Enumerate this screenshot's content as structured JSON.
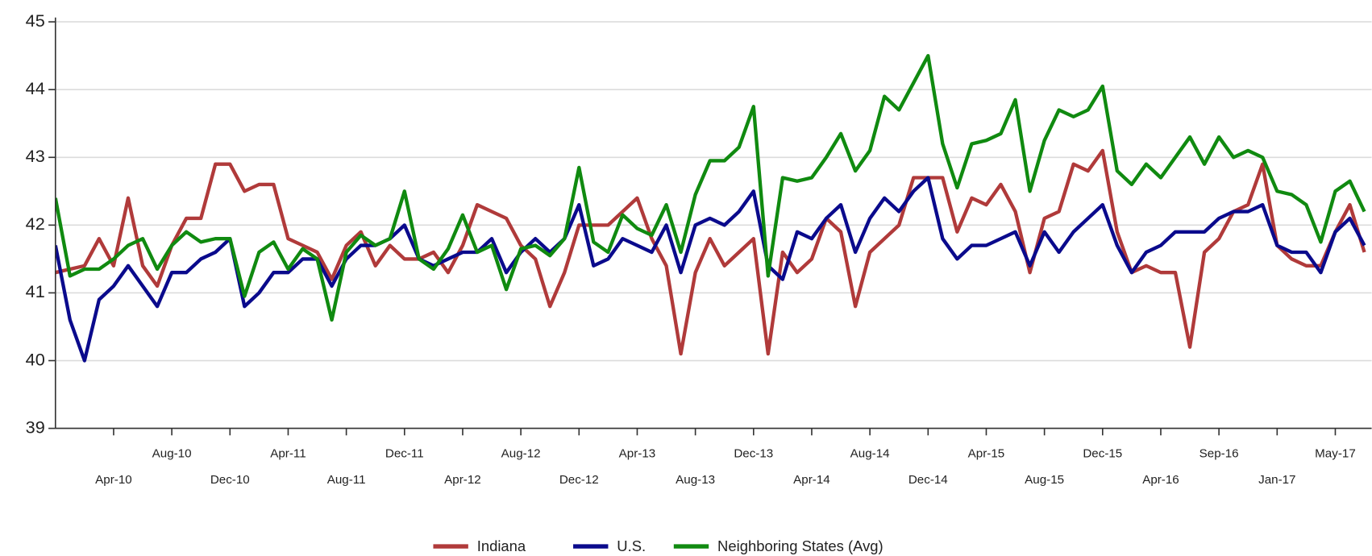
{
  "chart_data": {
    "type": "line",
    "categories": [
      null,
      null,
      null,
      null,
      "Apr-10",
      null,
      null,
      null,
      "Aug-10",
      null,
      null,
      null,
      "Dec-10",
      null,
      null,
      null,
      "Apr-11",
      null,
      null,
      null,
      "Aug-11",
      null,
      null,
      null,
      "Dec-11",
      null,
      null,
      null,
      "Apr-12",
      null,
      null,
      null,
      "Aug-12",
      null,
      null,
      null,
      "Dec-12",
      null,
      null,
      null,
      "Apr-13",
      null,
      null,
      null,
      "Aug-13",
      null,
      null,
      null,
      "Dec-13",
      null,
      null,
      null,
      "Apr-14",
      null,
      null,
      null,
      "Aug-14",
      null,
      null,
      null,
      "Dec-14",
      null,
      null,
      null,
      "Apr-15",
      null,
      null,
      null,
      "Aug-15",
      null,
      null,
      null,
      "Dec-15",
      null,
      null,
      null,
      "Apr-16",
      null,
      null,
      null,
      "Sep-16",
      null,
      null,
      null,
      "Jan-17",
      null,
      null,
      null,
      "May-17",
      null,
      null
    ],
    "series": [
      {
        "name": "Indiana",
        "color": "#b03a3a",
        "values": [
          41.3,
          41.35,
          41.4,
          41.8,
          41.4,
          42.4,
          41.4,
          41.1,
          41.7,
          42.1,
          42.1,
          42.9,
          42.9,
          42.5,
          42.6,
          42.6,
          41.8,
          41.7,
          41.6,
          41.2,
          41.7,
          41.9,
          41.4,
          41.7,
          41.5,
          41.5,
          41.6,
          41.3,
          41.7,
          42.3,
          42.2,
          42.1,
          41.7,
          41.5,
          40.8,
          41.3,
          42.0,
          42.0,
          42.0,
          42.2,
          42.4,
          41.8,
          41.4,
          40.1,
          41.3,
          41.8,
          41.4,
          41.6,
          41.8,
          40.1,
          41.6,
          41.3,
          41.5,
          42.1,
          41.9,
          40.8,
          41.6,
          41.8,
          42.0,
          42.7,
          42.7,
          42.7,
          41.9,
          42.4,
          42.3,
          42.6,
          42.2,
          41.3,
          42.1,
          42.2,
          42.9,
          42.8,
          43.1,
          41.9,
          41.3,
          41.4,
          41.3,
          41.3,
          40.2,
          41.6,
          41.8,
          42.2,
          42.3,
          42.9,
          41.7,
          41.5,
          41.4,
          41.4,
          41.9,
          42.3,
          41.6
        ]
      },
      {
        "name": "U.S.",
        "color": "#0a0a8c",
        "values": [
          41.7,
          40.6,
          40.0,
          40.9,
          41.1,
          41.4,
          41.1,
          40.8,
          41.3,
          41.3,
          41.5,
          41.6,
          41.8,
          40.8,
          41.0,
          41.3,
          41.3,
          41.5,
          41.5,
          41.1,
          41.5,
          41.7,
          41.7,
          41.8,
          42.0,
          41.5,
          41.4,
          41.5,
          41.6,
          41.6,
          41.8,
          41.3,
          41.6,
          41.8,
          41.6,
          41.8,
          42.3,
          41.4,
          41.5,
          41.8,
          41.7,
          41.6,
          42.0,
          41.3,
          42.0,
          42.1,
          42.0,
          42.2,
          42.5,
          41.4,
          41.2,
          41.9,
          41.8,
          42.1,
          42.3,
          41.6,
          42.1,
          42.4,
          42.2,
          42.5,
          42.7,
          41.8,
          41.5,
          41.7,
          41.7,
          41.8,
          41.9,
          41.4,
          41.9,
          41.6,
          41.9,
          42.1,
          42.3,
          41.7,
          41.3,
          41.6,
          41.7,
          41.9,
          41.9,
          41.9,
          42.1,
          42.2,
          42.2,
          42.3,
          41.7,
          41.6,
          41.6,
          41.3,
          41.9,
          42.1,
          41.7
        ]
      },
      {
        "name": "Neighboring States (Avg)",
        "color": "#108a10",
        "values": [
          42.4,
          41.25,
          41.35,
          41.35,
          41.5,
          41.7,
          41.8,
          41.35,
          41.7,
          41.9,
          41.75,
          41.8,
          41.8,
          40.95,
          41.6,
          41.75,
          41.35,
          41.65,
          41.5,
          40.6,
          41.6,
          41.85,
          41.7,
          41.8,
          42.5,
          41.5,
          41.35,
          41.65,
          42.15,
          41.6,
          41.7,
          41.05,
          41.65,
          41.7,
          41.55,
          41.8,
          42.85,
          41.75,
          41.6,
          42.15,
          41.95,
          41.85,
          42.3,
          41.6,
          42.45,
          42.95,
          42.95,
          43.15,
          43.75,
          41.25,
          42.7,
          42.65,
          42.7,
          43.0,
          43.35,
          42.8,
          43.1,
          43.9,
          43.7,
          44.1,
          44.5,
          43.2,
          42.55,
          43.2,
          43.25,
          43.35,
          43.85,
          42.5,
          43.25,
          43.7,
          43.6,
          43.7,
          44.05,
          42.8,
          42.6,
          42.9,
          42.7,
          43.0,
          43.3,
          42.9,
          43.3,
          43.0,
          43.1,
          43.0,
          42.5,
          42.45,
          42.3,
          41.75,
          42.5,
          42.65,
          42.2
        ]
      }
    ],
    "ylim": [
      39,
      45
    ],
    "yticks": [
      39,
      40,
      41,
      42,
      43,
      44,
      45
    ],
    "grid": true,
    "legend": "bottom"
  }
}
